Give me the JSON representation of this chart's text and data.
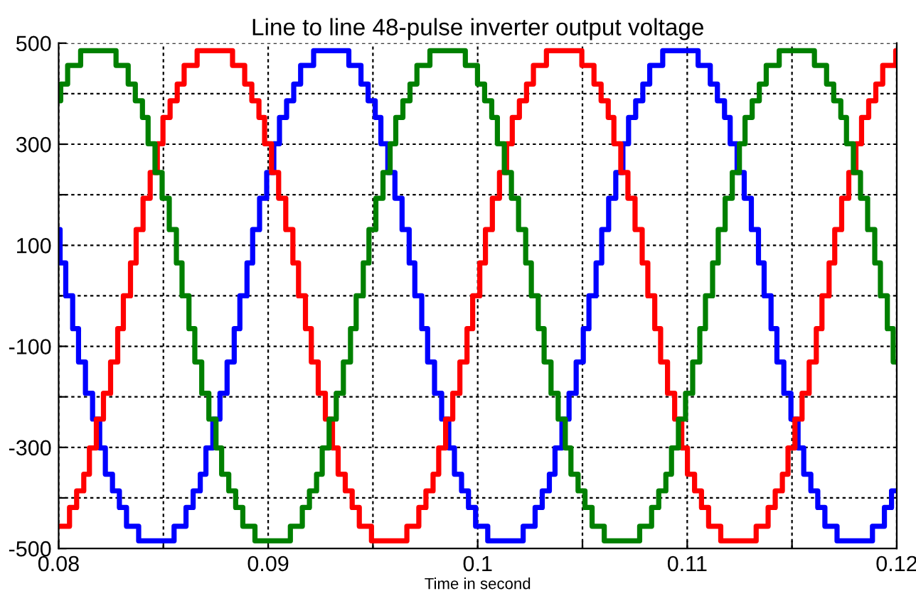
{
  "chart_data": {
    "type": "step",
    "title": "Line to line 48-pulse inverter output voltage",
    "xlabel": "Time in second",
    "xlim": [
      0.08,
      0.12
    ],
    "ylim": [
      -500,
      500
    ],
    "xticks": [
      0.08,
      {
        "value": 0.085,
        "label": null
      },
      0.09,
      {
        "value": 0.095,
        "label": null
      },
      0.1,
      {
        "value": 0.105,
        "label": null
      },
      0.11,
      {
        "value": 0.115,
        "label": null
      },
      0.12
    ],
    "yticks": [
      -500,
      {
        "value": -400,
        "label": null
      },
      -300,
      {
        "value": -200,
        "label": null
      },
      -100,
      {
        "value": 0,
        "label": null
      },
      100,
      {
        "value": 200,
        "label": null
      },
      300,
      {
        "value": 400,
        "label": null
      },
      500
    ],
    "grid": true,
    "line_style": "solid",
    "marker": "none",
    "series": [
      {
        "color": "#0000ff",
        "x": [
          0.08,
          0.08007,
          0.08034,
          0.08067,
          0.08095,
          0.08128,
          0.08162,
          0.08196,
          0.08223,
          0.08257,
          0.0829,
          0.08324,
          0.08382,
          0.08551,
          0.08608,
          0.08642,
          0.08676,
          0.08703,
          0.08736,
          0.0877,
          0.08804,
          0.08838,
          0.08865,
          0.08899,
          0.08926,
          0.08959,
          0.08993,
          0.09027,
          0.09054,
          0.09088,
          0.09122,
          0.09155,
          0.09217,
          0.09385,
          0.09443,
          0.09477,
          0.09511,
          0.09538,
          0.09571,
          0.09605,
          0.09639,
          0.09673,
          0.097,
          0.09733,
          0.09761,
          0.09794,
          0.09828,
          0.09862,
          0.09889,
          0.09923,
          0.09956,
          0.0999,
          0.10048,
          0.10217,
          0.10274,
          0.10308,
          0.10342,
          0.10369,
          0.10402,
          0.10436,
          0.1047,
          0.10504,
          0.10531,
          0.10565,
          0.10592,
          0.10625,
          0.10659,
          0.10693,
          0.1072,
          0.10754,
          0.10788,
          0.10821,
          0.10883,
          0.11052,
          0.1111,
          0.11144,
          0.11178,
          0.11205,
          0.11238,
          0.11272,
          0.11306,
          0.1134,
          0.11367,
          0.114,
          0.11428,
          0.11461,
          0.11495,
          0.11529,
          0.11556,
          0.1159,
          0.11623,
          0.11657,
          0.11715,
          0.11884,
          0.11941,
          0.11975,
          0.12
        ],
        "values": [
          131,
          65,
          0,
          -65,
          -131,
          -193,
          -244,
          -301,
          -353,
          -386,
          -419,
          -456,
          -485,
          -456,
          -419,
          -386,
          -353,
          -301,
          -244,
          -193,
          -131,
          -65,
          0,
          65,
          131,
          193,
          244,
          301,
          353,
          386,
          419,
          456,
          485,
          456,
          419,
          386,
          353,
          301,
          244,
          193,
          131,
          65,
          0,
          -65,
          -131,
          -193,
          -244,
          -301,
          -353,
          -386,
          -419,
          -456,
          -485,
          -456,
          -419,
          -386,
          -353,
          -301,
          -244,
          -193,
          -131,
          -65,
          0,
          65,
          131,
          193,
          244,
          301,
          353,
          386,
          419,
          456,
          485,
          456,
          419,
          386,
          353,
          301,
          244,
          193,
          131,
          65,
          0,
          -65,
          -131,
          -193,
          -244,
          -301,
          -353,
          -386,
          -419,
          -456,
          -485,
          -456,
          -419,
          -386,
          -386
        ]
      },
      {
        "color": "#ff0000",
        "x": [
          0.08,
          0.08052,
          0.08086,
          0.0812,
          0.08147,
          0.0818,
          0.08214,
          0.08248,
          0.08282,
          0.08309,
          0.08343,
          0.0837,
          0.08403,
          0.08437,
          0.08471,
          0.08498,
          0.08532,
          0.08566,
          0.08599,
          0.08661,
          0.0883,
          0.08888,
          0.08922,
          0.08956,
          0.08983,
          0.09016,
          0.0905,
          0.09084,
          0.09118,
          0.09145,
          0.09178,
          0.09206,
          0.09239,
          0.09273,
          0.09307,
          0.09334,
          0.09368,
          0.09401,
          0.09435,
          0.09493,
          0.09662,
          0.09719,
          0.09753,
          0.09787,
          0.09814,
          0.09847,
          0.09881,
          0.09915,
          0.09949,
          0.09976,
          0.1001,
          0.10037,
          0.1007,
          0.10104,
          0.10138,
          0.10165,
          0.10199,
          0.10233,
          0.10266,
          0.10328,
          0.10497,
          0.10555,
          0.10589,
          0.10623,
          0.1065,
          0.10683,
          0.10717,
          0.10751,
          0.10785,
          0.10812,
          0.10845,
          0.10873,
          0.10906,
          0.1094,
          0.10974,
          0.11001,
          0.11035,
          0.11068,
          0.11102,
          0.1116,
          0.11329,
          0.11386,
          0.1142,
          0.11454,
          0.11481,
          0.11514,
          0.11548,
          0.11582,
          0.11616,
          0.11643,
          0.11677,
          0.11704,
          0.11737,
          0.11771,
          0.11805,
          0.11832,
          0.11866,
          0.119,
          0.11933,
          0.11995,
          0.12
        ],
        "values": [
          -456,
          -419,
          -386,
          -353,
          -301,
          -244,
          -193,
          -131,
          -65,
          0,
          65,
          131,
          193,
          244,
          301,
          353,
          386,
          419,
          456,
          485,
          456,
          419,
          386,
          353,
          301,
          244,
          193,
          131,
          65,
          0,
          -65,
          -131,
          -193,
          -244,
          -301,
          -353,
          -386,
          -419,
          -456,
          -485,
          -456,
          -419,
          -386,
          -353,
          -301,
          -244,
          -193,
          -131,
          -65,
          0,
          65,
          131,
          193,
          244,
          301,
          353,
          386,
          419,
          456,
          485,
          456,
          419,
          386,
          353,
          301,
          244,
          193,
          131,
          65,
          0,
          -65,
          -131,
          -193,
          -244,
          -301,
          -353,
          -386,
          -419,
          -456,
          -485,
          -456,
          -419,
          -386,
          -353,
          -301,
          -244,
          -193,
          -131,
          -65,
          0,
          65,
          131,
          193,
          244,
          301,
          353,
          386,
          419,
          456,
          485,
          485
        ]
      },
      {
        "color": "#008000",
        "x": [
          0.08,
          0.0801,
          0.08043,
          0.08105,
          0.08274,
          0.08332,
          0.08366,
          0.084,
          0.08427,
          0.0846,
          0.08494,
          0.08528,
          0.08562,
          0.08589,
          0.08622,
          0.0865,
          0.08683,
          0.08717,
          0.08751,
          0.08778,
          0.08812,
          0.08845,
          0.08879,
          0.08937,
          0.09106,
          0.09163,
          0.09197,
          0.09231,
          0.09258,
          0.09291,
          0.09325,
          0.09359,
          0.09393,
          0.0942,
          0.09454,
          0.09481,
          0.09514,
          0.09548,
          0.09582,
          0.09609,
          0.09643,
          0.09677,
          0.0971,
          0.09772,
          0.09941,
          0.09999,
          0.10033,
          0.10067,
          0.10094,
          0.10127,
          0.10161,
          0.10195,
          0.10229,
          0.10256,
          0.10289,
          0.10317,
          0.1035,
          0.10384,
          0.10418,
          0.10445,
          0.10479,
          0.10512,
          0.10546,
          0.10604,
          0.10773,
          0.1083,
          0.10864,
          0.10898,
          0.10925,
          0.10958,
          0.10992,
          0.11026,
          0.1106,
          0.11087,
          0.11121,
          0.11148,
          0.11181,
          0.11215,
          0.11249,
          0.11276,
          0.1131,
          0.11344,
          0.11377,
          0.11439,
          0.11607,
          0.11665,
          0.11699,
          0.11733,
          0.1176,
          0.11793,
          0.11827,
          0.11861,
          0.11895,
          0.11922,
          0.11955,
          0.11983,
          0.12
        ],
        "values": [
          386,
          419,
          456,
          485,
          456,
          419,
          386,
          353,
          301,
          244,
          193,
          131,
          65,
          0,
          -65,
          -131,
          -193,
          -244,
          -301,
          -353,
          -386,
          -419,
          -456,
          -485,
          -456,
          -419,
          -386,
          -353,
          -301,
          -244,
          -193,
          -131,
          -65,
          0,
          65,
          131,
          193,
          244,
          301,
          353,
          386,
          419,
          456,
          485,
          456,
          419,
          386,
          353,
          301,
          244,
          193,
          131,
          65,
          0,
          -65,
          -131,
          -193,
          -244,
          -301,
          -353,
          -386,
          -419,
          -456,
          -485,
          -456,
          -419,
          -386,
          -353,
          -301,
          -244,
          -193,
          -131,
          -65,
          0,
          65,
          131,
          193,
          244,
          301,
          353,
          386,
          419,
          456,
          485,
          456,
          419,
          386,
          353,
          301,
          244,
          193,
          131,
          65,
          0,
          -65,
          -131,
          -131
        ]
      }
    ]
  }
}
